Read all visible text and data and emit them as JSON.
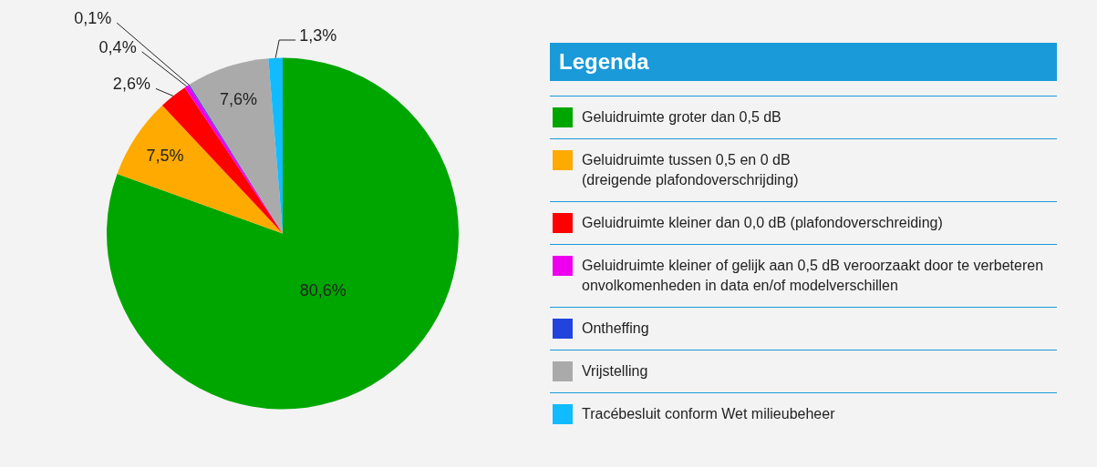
{
  "chart_data": {
    "type": "pie",
    "legend_title": "Legenda",
    "legend": "right",
    "categories": [
      "Geluidruimte groter dan 0,5 dB",
      "Geluidruimte tussen 0,5 en 0 dB\n(dreigende plafondoverschrijding)",
      "Geluidruimte kleiner dan 0,0 dB (plafondoverschreiding)",
      "Geluidruimte kleiner of gelijk aan 0,5 dB veroorzaakt door te verbeteren onvolkomenheden in data en/of modelverschillen",
      "Ontheffing",
      "Vrijstelling",
      "Tracébesluit conform Wet milieubeheer"
    ],
    "values": [
      80.6,
      7.5,
      2.6,
      0.4,
      0.1,
      7.6,
      1.3
    ],
    "colors": [
      "#00a600",
      "#ffaa00",
      "#ff0000",
      "#ee00ee",
      "#2244dd",
      "#aaaaaa",
      "#11bbff"
    ],
    "value_labels": [
      "80,6%",
      "7,5%",
      "2,6%",
      "0,4%",
      "0,1%",
      "7,6%",
      "1,3%"
    ]
  }
}
